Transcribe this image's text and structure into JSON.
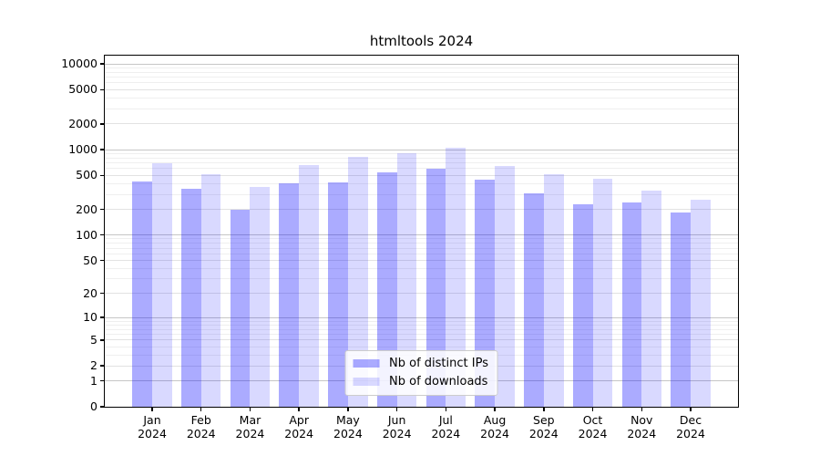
{
  "chart_data": {
    "type": "bar",
    "title": "htmltools 2024",
    "categories": [
      "Jan 2024",
      "Feb 2024",
      "Mar 2024",
      "Apr 2024",
      "May 2024",
      "Jun 2024",
      "Jul 2024",
      "Aug 2024",
      "Sep 2024",
      "Oct 2024",
      "Nov 2024",
      "Dec 2024"
    ],
    "series": [
      {
        "name": "Nb of distinct IPs",
        "color": "#0000ff",
        "alpha": 0.33,
        "rendered_color": "#aaaaf8",
        "values": [
          420,
          350,
          200,
          405,
          410,
          540,
          595,
          440,
          310,
          230,
          240,
          185
        ]
      },
      {
        "name": "Nb of downloads",
        "color": "#0000ff",
        "alpha": 0.15,
        "rendered_color": "#d9d9fa",
        "values": [
          700,
          520,
          370,
          660,
          830,
          905,
          1060,
          650,
          520,
          455,
          330,
          260
        ]
      }
    ],
    "yscale": "log1p",
    "y_ticks": [
      0,
      1,
      2,
      5,
      10,
      20,
      50,
      100,
      200,
      500,
      1000,
      2000,
      5000,
      10000
    ],
    "ylim": [
      0,
      12500
    ],
    "xlabel": "",
    "ylabel": "",
    "grid": true,
    "legend_position": "lower center"
  }
}
